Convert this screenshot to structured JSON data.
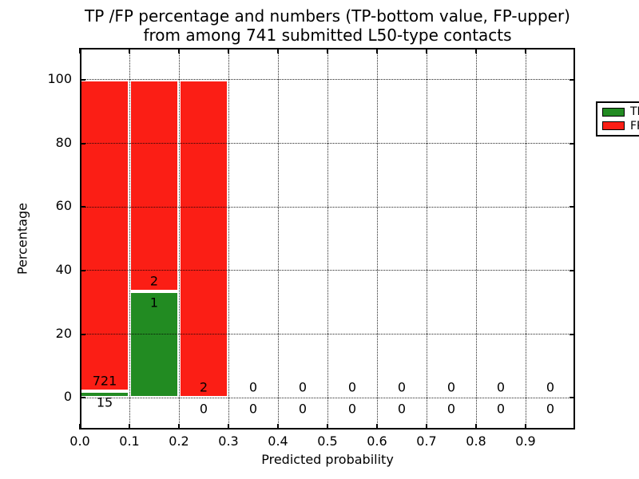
{
  "title": {
    "line1": "TP /FP percentage and numbers (TP-bottom value, FP-upper)",
    "line2": "from among 741 submitted L50-type contacts"
  },
  "legend": {
    "position": "upper right",
    "items": [
      {
        "label": "TP",
        "color": "#228b22"
      },
      {
        "label": "FP",
        "color": "#fb1e15"
      }
    ]
  },
  "axes": {
    "xlabel": "Predicted probability",
    "ylabel": "Percentage"
  },
  "chart_data": {
    "type": "bar",
    "stacked": true,
    "title": "TP /FP percentage and numbers (TP-bottom value, FP-upper) from among 741 submitted L50-type contacts",
    "xlabel": "Predicted probability",
    "ylabel": "Percentage",
    "xlim": [
      0.0,
      1.0
    ],
    "ylim": [
      -10,
      110
    ],
    "grid": true,
    "legend_position": "upper right",
    "total_contacts": 741,
    "bin_width": 0.1,
    "bin_starts": [
      0.0,
      0.1,
      0.2,
      0.3,
      0.4,
      0.5,
      0.6,
      0.7,
      0.8,
      0.9
    ],
    "xtick_values": [
      0.0,
      0.1,
      0.2,
      0.3,
      0.4,
      0.5,
      0.6,
      0.7,
      0.8,
      0.9
    ],
    "xtick_labels": [
      "0.0",
      "0.1",
      "0.2",
      "0.3",
      "0.4",
      "0.5",
      "0.6",
      "0.7",
      "0.8",
      "0.9"
    ],
    "ytick_values": [
      0,
      20,
      40,
      60,
      80,
      100
    ],
    "ytick_labels": [
      "0",
      "20",
      "40",
      "60",
      "80",
      "100"
    ],
    "series": [
      {
        "name": "TP",
        "color": "#228b22",
        "counts": [
          15,
          1,
          0,
          0,
          0,
          0,
          0,
          0,
          0,
          0
        ],
        "percent": [
          2.04,
          33.33,
          0,
          0,
          0,
          0,
          0,
          0,
          0,
          0
        ]
      },
      {
        "name": "FP",
        "color": "#fb1e15",
        "counts": [
          721,
          2,
          2,
          0,
          0,
          0,
          0,
          0,
          0,
          0
        ],
        "percent": [
          97.96,
          66.67,
          100,
          0,
          0,
          0,
          0,
          0,
          0,
          0
        ]
      }
    ]
  }
}
